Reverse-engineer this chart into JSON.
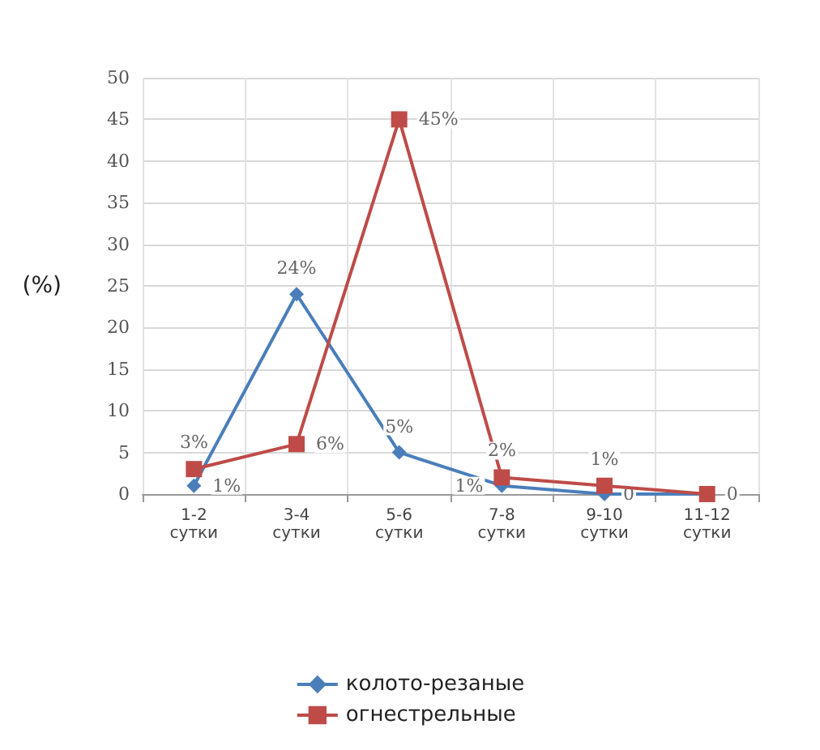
{
  "chart_data": {
    "type": "line",
    "ylabel": "(%)",
    "categories": [
      "1-2\nсутки",
      "3-4\nсутки",
      "5-6\nсутки",
      "7-8\nсутки",
      "9-10\nсутки",
      "11-12\nсутки"
    ],
    "series": [
      {
        "name": "колото-резаные",
        "color": "#4a7ebb",
        "marker": "diamond",
        "values": [
          1,
          24,
          5,
          1,
          0,
          0
        ],
        "value_labels": [
          "1%",
          "24%",
          "5%",
          "1%",
          "0",
          null
        ]
      },
      {
        "name": "огнестрельные",
        "color": "#be4b48",
        "marker": "square",
        "values": [
          3,
          6,
          45,
          2,
          1,
          0
        ],
        "value_labels": [
          "3%",
          "6%",
          "45%",
          "2%",
          "1%",
          "0"
        ]
      }
    ],
    "ylim": [
      0,
      50
    ],
    "yticks": [
      0,
      5,
      10,
      15,
      20,
      25,
      30,
      35,
      40,
      45,
      50
    ],
    "grid": true,
    "legend": "bottom"
  }
}
